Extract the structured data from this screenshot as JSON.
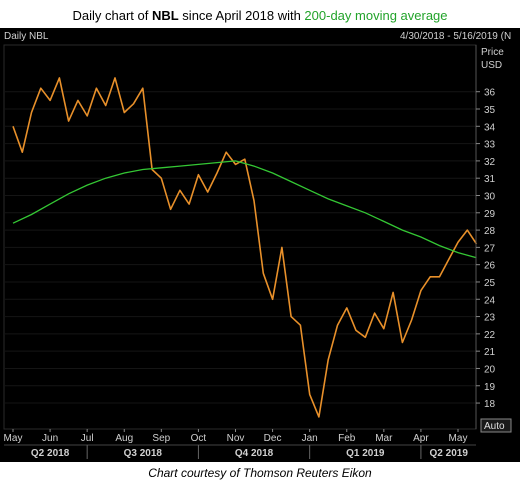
{
  "header": {
    "prefix": "Daily chart of ",
    "ticker": "NBL",
    "middle": " since April 2018 with ",
    "ma_label": "200-day moving average"
  },
  "panel": {
    "name": "Daily NBL",
    "range": "4/30/2018 - 5/16/2019 (N",
    "axis_title_1": "Price",
    "axis_title_2": "USD",
    "auto_button": "Auto"
  },
  "credit": "Chart courtesy of Thomson Reuters Eikon",
  "colors": {
    "background": "#000000",
    "price": "#e8902a",
    "ma": "#34c734",
    "text": "#d0d0d0"
  },
  "chart_data": {
    "type": "line",
    "ylim": [
      16.5,
      38.7
    ],
    "yticks": [
      18,
      19,
      20,
      21,
      22,
      23,
      24,
      25,
      26,
      27,
      28,
      29,
      30,
      31,
      32,
      33,
      34,
      35,
      36
    ],
    "month_labels": [
      "May",
      "Jun",
      "Jul",
      "Aug",
      "Sep",
      "Oct",
      "Nov",
      "Dec",
      "Jan",
      "Feb",
      "Mar",
      "Apr",
      "May"
    ],
    "quarter_labels": [
      "Q2 2018",
      "Q3 2018",
      "Q4 2018",
      "Q1 2019",
      "Q2 2019"
    ],
    "series": [
      {
        "kind": "price",
        "x": [
          0,
          0.25,
          0.5,
          0.75,
          1,
          1.25,
          1.5,
          1.75,
          2,
          2.25,
          2.5,
          2.75,
          3,
          3.25,
          3.5,
          3.75,
          4,
          4.25,
          4.5,
          4.75,
          5,
          5.25,
          5.5,
          5.75,
          6,
          6.25,
          6.5,
          6.75,
          7,
          7.25,
          7.5,
          7.75,
          8,
          8.25,
          8.5,
          8.75,
          9,
          9.25,
          9.5,
          9.75,
          10,
          10.25,
          10.5,
          10.75,
          11,
          11.25,
          11.5,
          11.75,
          12,
          12.25,
          12.5
        ],
        "y": [
          34,
          32.5,
          34.8,
          36.2,
          35.5,
          36.8,
          34.3,
          35.5,
          34.6,
          36.2,
          35.2,
          36.8,
          34.8,
          35.3,
          36.2,
          31.5,
          31,
          29.2,
          30.3,
          29.5,
          31.2,
          30.2,
          31.3,
          32.5,
          31.8,
          32.1,
          29.7,
          25.5,
          24,
          27,
          23,
          22.5,
          18.5,
          17.2,
          20.5,
          22.5,
          23.5,
          22.2,
          21.8,
          23.2,
          22.3,
          24.4,
          21.5,
          22.8,
          24.5,
          25.3,
          25.3,
          26.3,
          27.3,
          28,
          27.2
        ]
      },
      {
        "kind": "ma200",
        "x": [
          0,
          0.5,
          1,
          1.5,
          2,
          2.5,
          3,
          3.5,
          4,
          4.5,
          5,
          5.5,
          6,
          6.5,
          7,
          7.5,
          8,
          8.5,
          9,
          9.5,
          10,
          10.5,
          11,
          11.5,
          12,
          12.5
        ],
        "y": [
          28.4,
          28.9,
          29.5,
          30.1,
          30.6,
          31.0,
          31.3,
          31.5,
          31.6,
          31.7,
          31.8,
          31.9,
          32.0,
          31.7,
          31.3,
          30.8,
          30.3,
          29.8,
          29.4,
          29.0,
          28.5,
          28.0,
          27.6,
          27.1,
          26.7,
          26.4
        ]
      }
    ]
  }
}
